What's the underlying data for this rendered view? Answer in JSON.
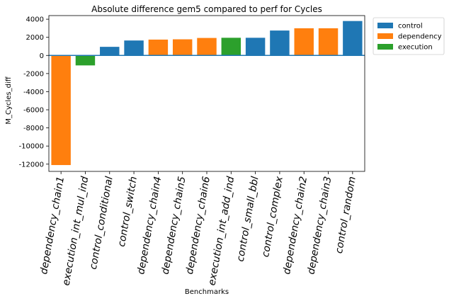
{
  "chart_data": {
    "type": "bar",
    "title": "Absolute difference gem5 compared to perf for Cycles",
    "xlabel": "Benchmarks",
    "ylabel": "M_Cycles_diff",
    "ylim": [
      -12800,
      4400
    ],
    "yticks": [
      -12000,
      -10000,
      -8000,
      -6000,
      -4000,
      -2000,
      0,
      2000,
      4000
    ],
    "grid": false,
    "zero_line": true,
    "legend_placement": "outside-top-right",
    "categories": [
      "dependency_chain1",
      "execution_int_mul_ind",
      "control_conditional",
      "control_switch",
      "dependency_chain4",
      "dependency_chain5",
      "dependency_chain6",
      "execution_int_add_ind",
      "control_small_bbl",
      "control_complex",
      "dependency_chain2",
      "dependency_chain3",
      "control_random"
    ],
    "values": [
      -12100,
      -1100,
      950,
      1650,
      1750,
      1780,
      1930,
      1950,
      1950,
      2750,
      3000,
      3000,
      3800
    ],
    "groups": [
      "dependency",
      "execution",
      "control",
      "control",
      "dependency",
      "dependency",
      "dependency",
      "execution",
      "control",
      "control",
      "dependency",
      "dependency",
      "control"
    ],
    "legend": [
      {
        "name": "control",
        "color": "#1f77b4"
      },
      {
        "name": "dependency",
        "color": "#ff7f0e"
      },
      {
        "name": "execution",
        "color": "#2ca02c"
      }
    ],
    "zero_line_color": "#1f77b4"
  }
}
